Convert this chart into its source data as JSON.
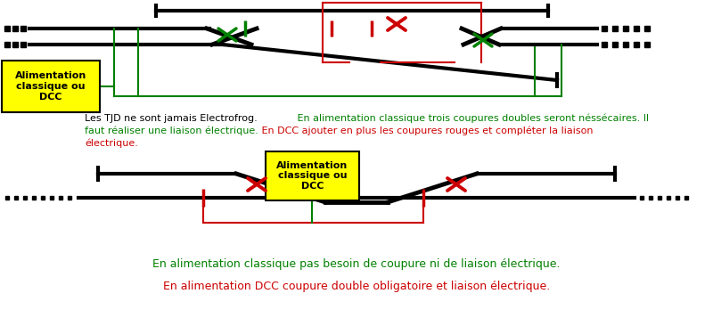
{
  "bg_color": "#ffffff",
  "color_black": "#000000",
  "color_green": "#008000",
  "color_red": "#cc0000",
  "color_yellow": "#ffff00",
  "label_alim": "Alimentation\nclassique ou\nDCC",
  "text_black": "Les TJD ne sont jamais Electrofrog.",
  "text_green_1": " En alimentation classique trois coupures doubles seront néssécaires. Il",
  "text_green_2": "faut réaliser une liaison électrique.",
  "text_red_1": " En DCC ajouter en plus les coupures rouges et compléter la liaison",
  "text_red_2": "électrique.",
  "text_bottom_green": "En alimentation classique pas besoin de coupure ni de liaison électrique.",
  "text_bottom_red": "En alimentation DCC coupure double obligatoire et liaison électrique."
}
